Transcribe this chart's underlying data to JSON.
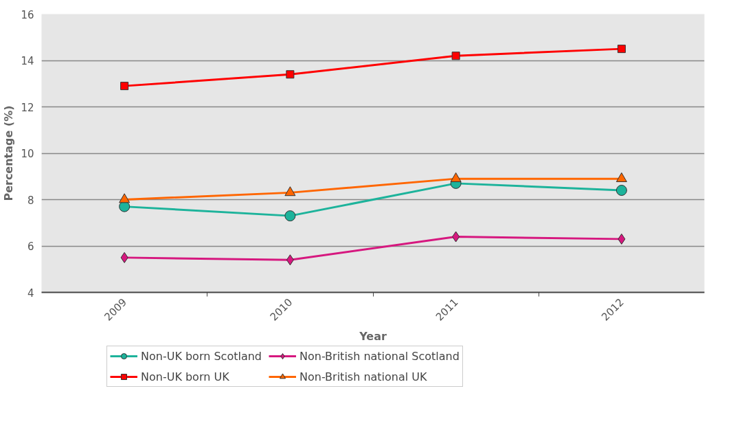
{
  "chart_data": {
    "type": "line",
    "xlabel": "Year",
    "ylabel": "Percentage (%)",
    "categories": [
      "2009",
      "2010",
      "2011",
      "2012"
    ],
    "ylim": [
      4,
      16
    ],
    "yticks": [
      4,
      6,
      8,
      10,
      12,
      14,
      16
    ],
    "grid": "y",
    "legend": "bottom",
    "series": [
      {
        "name": "Non-UK born Scotland",
        "color": "#1db39b",
        "marker": "circle",
        "values": [
          7.7,
          7.3,
          8.7,
          8.4
        ]
      },
      {
        "name": "Non-British national Scotland",
        "color": "#d6187f",
        "marker": "diamond",
        "values": [
          5.5,
          5.4,
          6.4,
          6.3
        ]
      },
      {
        "name": "Non-UK born UK",
        "color": "#ff0000",
        "marker": "square",
        "values": [
          12.9,
          13.4,
          14.2,
          14.5
        ]
      },
      {
        "name": "Non-British national UK",
        "color": "#ff6600",
        "marker": "triangle",
        "values": [
          8.0,
          8.3,
          8.9,
          8.9
        ]
      }
    ]
  }
}
